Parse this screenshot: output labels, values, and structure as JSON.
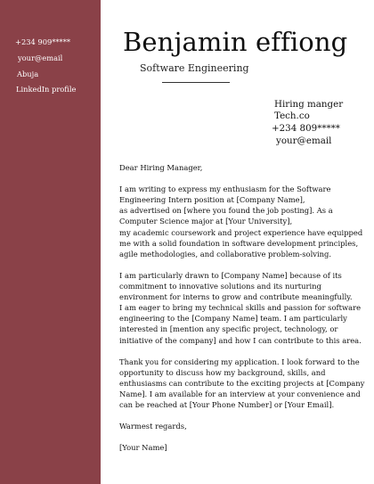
{
  "sidebar": {
    "phone": "+234 909*****",
    "email": "your@email",
    "location": "Abuja",
    "linkedin": "LinkedIn profile",
    "color": "#8a4148"
  },
  "header": {
    "name": "Benjamin effiong",
    "role": "Software Engineering"
  },
  "recipient": {
    "title": "Hiring manger",
    "company": "Tech.co",
    "phone": "+234 809*****",
    "email": "your@email"
  },
  "letter": {
    "salutation": "Dear Hiring Manager,",
    "para1": [
      "I am writing to express my enthusiasm for the Software",
      "Engineering Intern position at [Company Name],",
      "as advertised on [where you found the job posting]. As a",
      "Computer Science major at [Your University],",
      "my academic coursework and project experience have equipped",
      "me with a solid foundation in software development principles,",
      "agile methodologies, and collaborative problem-solving."
    ],
    "para2": [
      "I am particularly drawn to [Company Name] because of its",
      "commitment to innovative solutions and its nurturing",
      "environment for interns to grow and contribute meaningfully.",
      "I am eager to bring my technical skills and passion for software",
      "engineering to the [Company Name] team. I am particularly",
      "interested in [mention any specific project, technology, or",
      "initiative of the company] and how I can contribute to this area."
    ],
    "para3": [
      "Thank you for considering my application. I look forward to the",
      "opportunity to discuss how my background, skills, and",
      "enthusiasms can contribute to the exciting projects at [Company",
      "Name]. I am available for an interview at your convenience and",
      "can be reached at [Your Phone Number] or [Your Email]."
    ],
    "closing": "Warmest regards,",
    "signature": "[Your Name]"
  }
}
